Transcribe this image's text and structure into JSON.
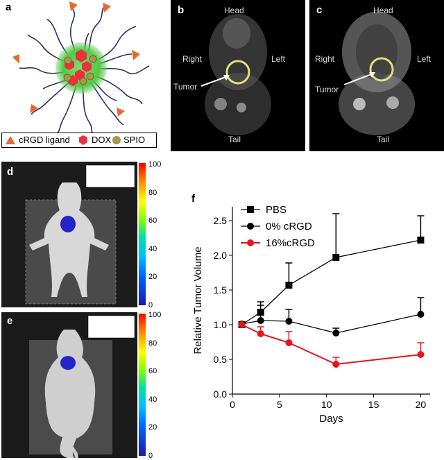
{
  "panels": {
    "a": {
      "letter": "a",
      "legend": {
        "ligand": "cRGD ligand",
        "dox": "DOX",
        "spio": "SPIO"
      }
    },
    "b": {
      "letter": "b",
      "head": "Head",
      "tail": "Tail",
      "right": "Right",
      "left": "Left",
      "tumor": "Tumor"
    },
    "c": {
      "letter": "c",
      "head": "Head",
      "tail": "Tail",
      "right": "Right",
      "left": "Left",
      "tumor": "Tumor"
    },
    "d": {
      "letter": "d",
      "colorbar_ticks": [
        "100",
        "80",
        "60",
        "40",
        "20",
        "0"
      ]
    },
    "e": {
      "letter": "e",
      "colorbar_ticks": [
        "100",
        "80",
        "60",
        "40",
        "20",
        "0"
      ]
    },
    "f": {
      "letter": "f"
    }
  },
  "colors": {
    "pbs": "#000000",
    "zero": "#000000",
    "sixteen": "#e8141c",
    "ligand": "#e9692c",
    "dox": "#e8323c",
    "spio": "#a8964a",
    "micelle": "#53c947"
  },
  "chart_data": {
    "type": "line",
    "xlabel": "Days",
    "ylabel": "Relative Tumor Volume",
    "xlim": [
      0,
      21
    ],
    "ylim": [
      0,
      2.7
    ],
    "xticks": [
      "0",
      "5",
      "10",
      "15",
      "20"
    ],
    "yticks": [
      "0.0",
      "0.5",
      "1.0",
      "1.5",
      "2.0",
      "2.5"
    ],
    "legend_position": "top-left",
    "series": [
      {
        "name": "PBS",
        "marker": "square",
        "color": "#000000",
        "x": [
          1,
          3,
          6,
          11,
          20
        ],
        "y": [
          1.0,
          1.18,
          1.57,
          1.97,
          2.22
        ],
        "err": [
          0.0,
          0.15,
          0.32,
          0.63,
          0.35
        ]
      },
      {
        "name": "0% cRGD",
        "marker": "circle",
        "color": "#000000",
        "x": [
          1,
          3,
          6,
          11,
          20
        ],
        "y": [
          1.01,
          1.06,
          1.05,
          0.88,
          1.15
        ],
        "err": [
          0.0,
          0.22,
          0.17,
          0.07,
          0.24
        ]
      },
      {
        "name": "16%cRGD",
        "marker": "circle",
        "color": "#e8141c",
        "x": [
          1,
          3,
          6,
          11,
          20
        ],
        "y": [
          1.0,
          0.87,
          0.74,
          0.43,
          0.57
        ],
        "err": [
          0.0,
          0.1,
          0.16,
          0.1,
          0.17
        ]
      }
    ]
  }
}
